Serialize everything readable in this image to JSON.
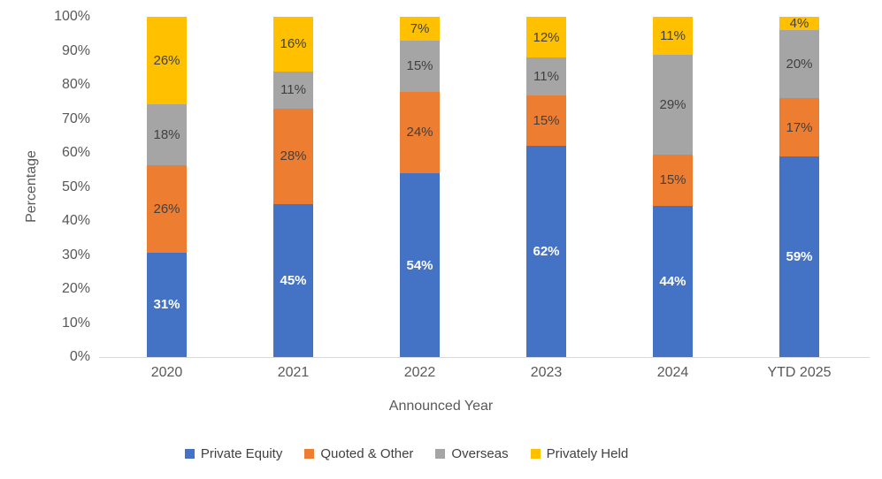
{
  "chart_data": {
    "type": "bar",
    "variant": "100%-stacked-column",
    "title": "",
    "xlabel": "Announced Year",
    "ylabel": "Percentage",
    "ylim": [
      0,
      100
    ],
    "yticks": [
      "0%",
      "10%",
      "20%",
      "30%",
      "40%",
      "50%",
      "60%",
      "70%",
      "80%",
      "90%",
      "100%"
    ],
    "categories": [
      "2020",
      "2021",
      "2022",
      "2023",
      "2024",
      "YTD 2025"
    ],
    "series": [
      {
        "name": "Private Equity",
        "color": "#4472C4",
        "label_color": "#FFFFFF",
        "label_bold": true,
        "values": [
          31,
          45,
          54,
          62,
          44,
          59
        ]
      },
      {
        "name": "Quoted & Other",
        "color": "#ED7D31",
        "label_color": "#404040",
        "label_bold": false,
        "values": [
          26,
          28,
          24,
          15,
          15,
          17
        ]
      },
      {
        "name": "Overseas",
        "color": "#A5A5A5",
        "label_color": "#404040",
        "label_bold": false,
        "values": [
          18,
          11,
          15,
          11,
          29,
          20
        ]
      },
      {
        "name": "Privately Held",
        "color": "#FFC000",
        "label_color": "#404040",
        "label_bold": false,
        "values": [
          26,
          16,
          7,
          12,
          11,
          4
        ]
      }
    ],
    "data_label_suffix": "%",
    "legend_position": "bottom",
    "grid": false,
    "axis_line_color": "#D9D9D9",
    "tick_text_color": "#595959",
    "legend_text_color": "#404040"
  }
}
